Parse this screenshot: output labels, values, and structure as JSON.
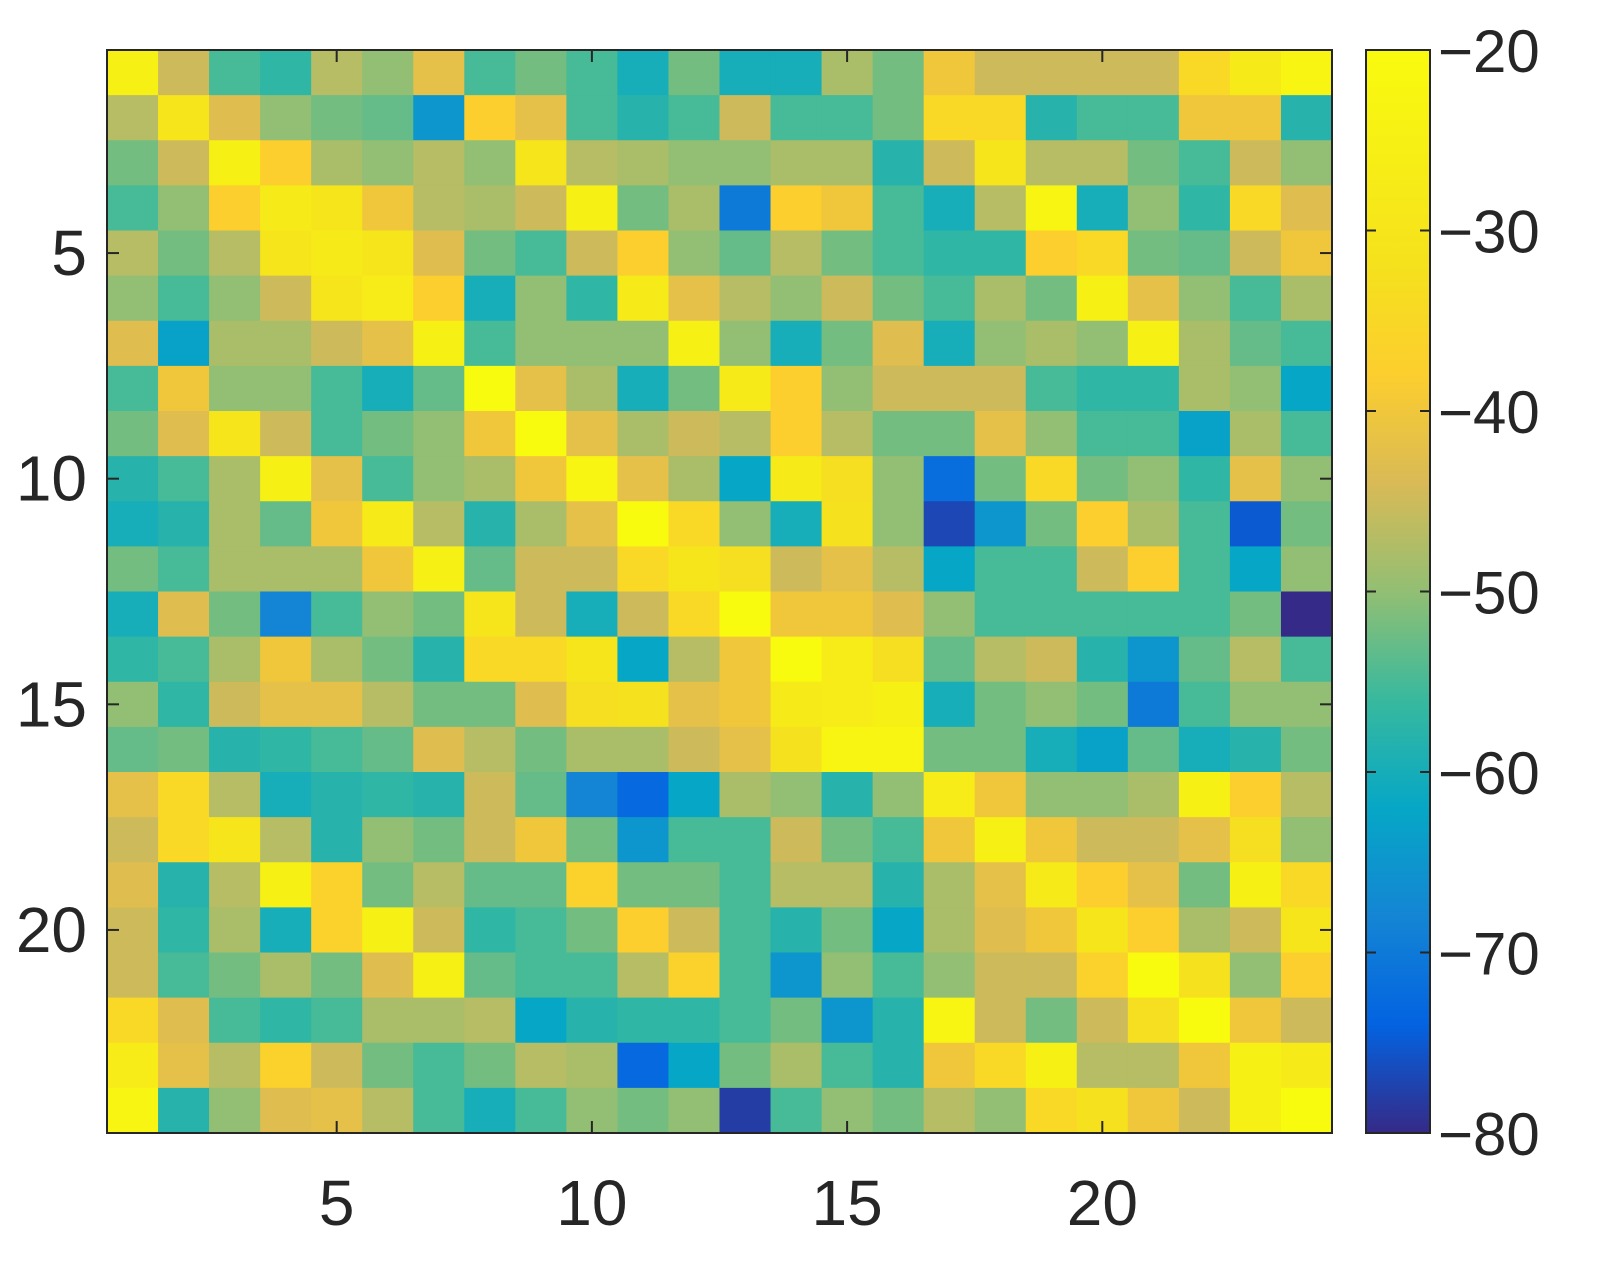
{
  "chart_data": {
    "type": "heatmap",
    "title": "",
    "xlabel": "",
    "ylabel": "",
    "xlim": [
      0.5,
      24.5
    ],
    "ylim": [
      0.5,
      21.5
    ],
    "x_ticks": [
      5,
      10,
      15,
      20
    ],
    "y_ticks": [
      5,
      10,
      15,
      20
    ],
    "x_tick_labels": [
      "5",
      "10",
      "15",
      "20"
    ],
    "y_tick_labels": [
      "5",
      "10",
      "15",
      "20"
    ],
    "colorbar": {
      "colormap": "parula",
      "range": [
        -80,
        -20
      ],
      "ticks": [
        -20,
        -30,
        -40,
        -50,
        -60,
        -70,
        -80
      ],
      "tick_labels": [
        "−20",
        "−30",
        "−40",
        "−50",
        "−60",
        "−70",
        "−80"
      ]
    },
    "rows": 24,
    "cols": 24,
    "z": [
      [
        -25,
        -45,
        -55,
        -57,
        -47,
        -50,
        -42,
        -55,
        -52,
        -55,
        -60,
        -52,
        -60,
        -60,
        -48,
        -52,
        -40,
        -45,
        -45,
        -45,
        -45,
        -35,
        -28,
        -23
      ],
      [
        -47,
        -30,
        -43,
        -50,
        -52,
        -53,
        -65,
        -38,
        -42,
        -55,
        -58,
        -55,
        -45,
        -55,
        -55,
        -52,
        -35,
        -35,
        -58,
        -55,
        -55,
        -40,
        -40,
        -58
      ],
      [
        -52,
        -45,
        -25,
        -38,
        -48,
        -50,
        -47,
        -50,
        -30,
        -47,
        -48,
        -50,
        -50,
        -48,
        -48,
        -58,
        -45,
        -30,
        -47,
        -47,
        -52,
        -55,
        -45,
        -50
      ],
      [
        -55,
        -50,
        -38,
        -28,
        -30,
        -40,
        -47,
        -48,
        -45,
        -25,
        -52,
        -48,
        -70,
        -38,
        -40,
        -55,
        -60,
        -47,
        -23,
        -60,
        -50,
        -57,
        -35,
        -43
      ],
      [
        -47,
        -52,
        -47,
        -30,
        -28,
        -30,
        -43,
        -52,
        -55,
        -45,
        -38,
        -50,
        -53,
        -47,
        -52,
        -55,
        -57,
        -57,
        -38,
        -35,
        -52,
        -53,
        -45,
        -40
      ],
      [
        -50,
        -55,
        -50,
        -45,
        -30,
        -27,
        -38,
        -60,
        -50,
        -57,
        -28,
        -42,
        -47,
        -50,
        -45,
        -52,
        -55,
        -48,
        -52,
        -25,
        -42,
        -50,
        -55,
        -48
      ],
      [
        -43,
        -63,
        -48,
        -48,
        -45,
        -42,
        -25,
        -55,
        -50,
        -50,
        -50,
        -25,
        -50,
        -60,
        -52,
        -43,
        -60,
        -50,
        -48,
        -50,
        -25,
        -48,
        -53,
        -55
      ],
      [
        -55,
        -40,
        -50,
        -50,
        -55,
        -60,
        -53,
        -20,
        -42,
        -48,
        -60,
        -52,
        -28,
        -38,
        -50,
        -45,
        -45,
        -45,
        -55,
        -57,
        -57,
        -48,
        -50,
        -62
      ],
      [
        -52,
        -43,
        -30,
        -45,
        -55,
        -52,
        -50,
        -40,
        -20,
        -42,
        -48,
        -45,
        -47,
        -38,
        -47,
        -52,
        -52,
        -42,
        -50,
        -55,
        -55,
        -63,
        -48,
        -55
      ],
      [
        -58,
        -55,
        -48,
        -25,
        -42,
        -55,
        -50,
        -48,
        -40,
        -23,
        -42,
        -48,
        -62,
        -28,
        -33,
        -50,
        -72,
        -52,
        -35,
        -52,
        -50,
        -57,
        -42,
        -50
      ],
      [
        -60,
        -58,
        -48,
        -53,
        -40,
        -28,
        -47,
        -58,
        -48,
        -42,
        -20,
        -35,
        -50,
        -60,
        -32,
        -50,
        -77,
        -65,
        -52,
        -38,
        -48,
        -55,
        -75,
        -52
      ],
      [
        -52,
        -55,
        -48,
        -48,
        -48,
        -40,
        -25,
        -53,
        -45,
        -45,
        -35,
        -30,
        -33,
        -45,
        -42,
        -47,
        -62,
        -55,
        -55,
        -45,
        -38,
        -55,
        -62,
        -50
      ],
      [
        -60,
        -43,
        -52,
        -68,
        -55,
        -50,
        -52,
        -30,
        -45,
        -60,
        -45,
        -35,
        -20,
        -40,
        -40,
        -43,
        -50,
        -55,
        -55,
        -55,
        -55,
        -55,
        -52,
        -80
      ],
      [
        -57,
        -55,
        -48,
        -40,
        -48,
        -52,
        -58,
        -35,
        -35,
        -30,
        -62,
        -47,
        -40,
        -20,
        -27,
        -33,
        -53,
        -47,
        -45,
        -58,
        -65,
        -53,
        -47,
        -55
      ],
      [
        -50,
        -57,
        -45,
        -42,
        -42,
        -47,
        -52,
        -52,
        -43,
        -33,
        -32,
        -42,
        -40,
        -28,
        -27,
        -25,
        -60,
        -52,
        -50,
        -52,
        -70,
        -55,
        -50,
        -50
      ],
      [
        -53,
        -52,
        -58,
        -57,
        -55,
        -53,
        -43,
        -47,
        -52,
        -48,
        -48,
        -45,
        -42,
        -32,
        -23,
        -23,
        -52,
        -52,
        -60,
        -63,
        -53,
        -60,
        -58,
        -52
      ],
      [
        -42,
        -35,
        -47,
        -60,
        -58,
        -57,
        -58,
        -45,
        -53,
        -68,
        -73,
        -62,
        -48,
        -50,
        -58,
        -50,
        -27,
        -40,
        -50,
        -50,
        -48,
        -25,
        -38,
        -47
      ],
      [
        -45,
        -35,
        -30,
        -47,
        -58,
        -50,
        -52,
        -45,
        -40,
        -52,
        -65,
        -55,
        -55,
        -45,
        -52,
        -55,
        -40,
        -25,
        -40,
        -45,
        -45,
        -42,
        -33,
        -50
      ],
      [
        -43,
        -58,
        -47,
        -25,
        -37,
        -52,
        -47,
        -53,
        -53,
        -37,
        -52,
        -52,
        -55,
        -47,
        -47,
        -58,
        -48,
        -42,
        -28,
        -38,
        -42,
        -52,
        -25,
        -35
      ],
      [
        -45,
        -57,
        -48,
        -60,
        -37,
        -25,
        -45,
        -57,
        -55,
        -52,
        -38,
        -45,
        -55,
        -58,
        -52,
        -62,
        -48,
        -43,
        -40,
        -30,
        -38,
        -48,
        -45,
        -30
      ],
      [
        -45,
        -55,
        -52,
        -48,
        -52,
        -43,
        -25,
        -53,
        -55,
        -55,
        -47,
        -37,
        -55,
        -65,
        -50,
        -55,
        -50,
        -45,
        -45,
        -37,
        -20,
        -32,
        -50,
        -38
      ],
      [
        -35,
        -43,
        -55,
        -57,
        -55,
        -48,
        -48,
        -47,
        -62,
        -58,
        -57,
        -57,
        -55,
        -52,
        -65,
        -58,
        -23,
        -45,
        -52,
        -45,
        -33,
        -20,
        -40,
        -45
      ],
      [
        -27,
        -42,
        -47,
        -37,
        -45,
        -52,
        -55,
        -52,
        -47,
        -48,
        -73,
        -62,
        -52,
        -48,
        -55,
        -58,
        -40,
        -35,
        -25,
        -47,
        -47,
        -40,
        -25,
        -28
      ],
      [
        -23,
        -58,
        -50,
        -43,
        -42,
        -47,
        -55,
        -60,
        -55,
        -50,
        -52,
        -50,
        -78,
        -55,
        -50,
        -52,
        -47,
        -50,
        -35,
        -32,
        -40,
        -45,
        -25,
        -20
      ]
    ]
  }
}
